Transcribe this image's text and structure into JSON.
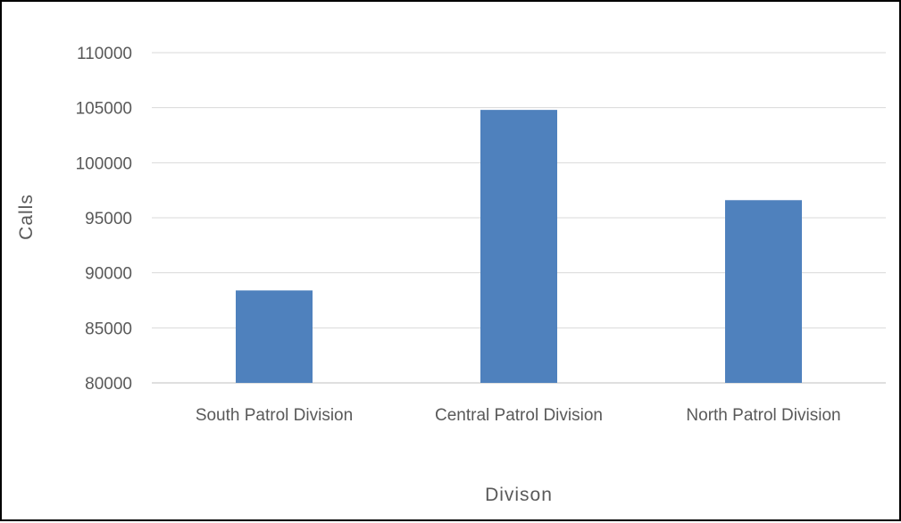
{
  "chart_data": {
    "type": "bar",
    "title": "",
    "categories": [
      "South Patrol Division",
      "Central Patrol Division",
      "North Patrol Division"
    ],
    "values": [
      88400,
      104800,
      96600
    ],
    "xlabel": "Divison",
    "ylabel": "Calls",
    "ylim": [
      80000,
      110000
    ],
    "yticks": [
      80000,
      85000,
      90000,
      95000,
      100000,
      105000,
      110000
    ],
    "ytick_labels": [
      "80000",
      "85000",
      "90000",
      "95000",
      "100000",
      "105000",
      "110000"
    ],
    "grid": true,
    "legend": "none",
    "bar_color": "#4f81bd"
  }
}
